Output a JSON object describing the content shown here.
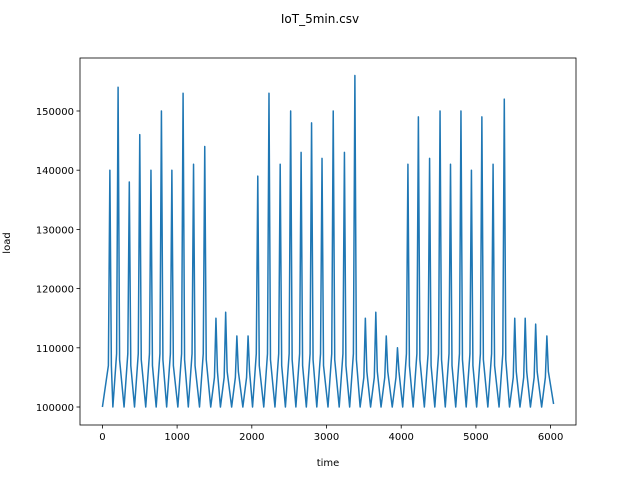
{
  "chart_data": {
    "type": "line",
    "title": "IoT_5min.csv",
    "x_label": "time",
    "y_label": "load",
    "xlim": [
      -300,
      6340
    ],
    "ylim": [
      96960,
      158950
    ],
    "xticks": [
      0,
      1000,
      2000,
      3000,
      4000,
      5000,
      6000
    ],
    "yticks": [
      100000,
      110000,
      120000,
      130000,
      140000,
      150000
    ],
    "series": [
      {
        "color": "#1f77b4",
        "x": [
          0,
          80,
          100,
          120,
          140,
          190,
          210,
          230,
          290,
          340,
          360,
          380,
          430,
          480,
          500,
          520,
          580,
          630,
          650,
          670,
          720,
          770,
          790,
          810,
          860,
          910,
          930,
          950,
          1010,
          1060,
          1080,
          1100,
          1150,
          1200,
          1220,
          1240,
          1300,
          1350,
          1370,
          1390,
          1450,
          1500,
          1520,
          1540,
          1580,
          1630,
          1650,
          1670,
          1730,
          1780,
          1800,
          1820,
          1880,
          1930,
          1950,
          1970,
          2010,
          2060,
          2080,
          2100,
          2160,
          2210,
          2230,
          2250,
          2310,
          2360,
          2380,
          2400,
          2450,
          2500,
          2520,
          2540,
          2590,
          2640,
          2660,
          2680,
          2730,
          2780,
          2800,
          2820,
          2870,
          2920,
          2940,
          2960,
          3020,
          3070,
          3090,
          3110,
          3170,
          3220,
          3240,
          3260,
          3310,
          3360,
          3380,
          3400,
          3450,
          3500,
          3520,
          3540,
          3590,
          3640,
          3660,
          3680,
          3730,
          3780,
          3800,
          3820,
          3880,
          3930,
          3950,
          3970,
          4020,
          4070,
          4090,
          4110,
          4160,
          4210,
          4230,
          4250,
          4310,
          4360,
          4380,
          4400,
          4450,
          4500,
          4520,
          4540,
          4590,
          4640,
          4660,
          4680,
          4730,
          4780,
          4800,
          4820,
          4870,
          4920,
          4940,
          4960,
          5010,
          5060,
          5080,
          5100,
          5160,
          5210,
          5230,
          5250,
          5310,
          5360,
          5380,
          5400,
          5450,
          5500,
          5520,
          5540,
          5590,
          5640,
          5660,
          5680,
          5730,
          5780,
          5800,
          5820,
          5880,
          5930,
          5950,
          5970,
          6040
        ],
        "values": [
          100000,
          107000,
          140000,
          107000,
          100000,
          109000,
          154000,
          108000,
          100000,
          109000,
          138000,
          107000,
          100000,
          109000,
          146000,
          108000,
          100000,
          109000,
          140000,
          107000,
          100000,
          109000,
          150000,
          108000,
          100000,
          109000,
          140000,
          107000,
          100000,
          109000,
          153000,
          108000,
          100000,
          109000,
          141000,
          107000,
          100000,
          109000,
          144000,
          108000,
          100000,
          105000,
          115000,
          106000,
          100000,
          105000,
          116000,
          106000,
          100000,
          105000,
          112000,
          106000,
          100000,
          105000,
          112000,
          106000,
          100000,
          109000,
          139000,
          107000,
          100000,
          109000,
          153000,
          108000,
          100000,
          109000,
          141000,
          107000,
          100000,
          109000,
          150000,
          108000,
          100000,
          109000,
          143000,
          107000,
          100000,
          109000,
          148000,
          108000,
          100000,
          109000,
          142000,
          107000,
          100000,
          109000,
          150000,
          108000,
          100000,
          109000,
          143000,
          107000,
          100000,
          109000,
          156000,
          108000,
          100000,
          105000,
          115000,
          106000,
          100000,
          105000,
          116000,
          106000,
          100000,
          105000,
          112000,
          106000,
          100000,
          105000,
          110000,
          106000,
          100000,
          109000,
          141000,
          107000,
          100000,
          109000,
          149000,
          108000,
          100000,
          109000,
          142000,
          107000,
          100000,
          109000,
          150000,
          108000,
          100000,
          109000,
          141000,
          107000,
          100000,
          109000,
          150000,
          108000,
          100000,
          109000,
          140000,
          107000,
          100000,
          109000,
          149000,
          108000,
          100000,
          109000,
          141000,
          107000,
          100000,
          109000,
          152000,
          108000,
          100000,
          105000,
          115000,
          106000,
          100000,
          105000,
          115000,
          106000,
          100000,
          105000,
          114000,
          106000,
          100000,
          105000,
          112000,
          106000,
          100500
        ]
      }
    ]
  }
}
